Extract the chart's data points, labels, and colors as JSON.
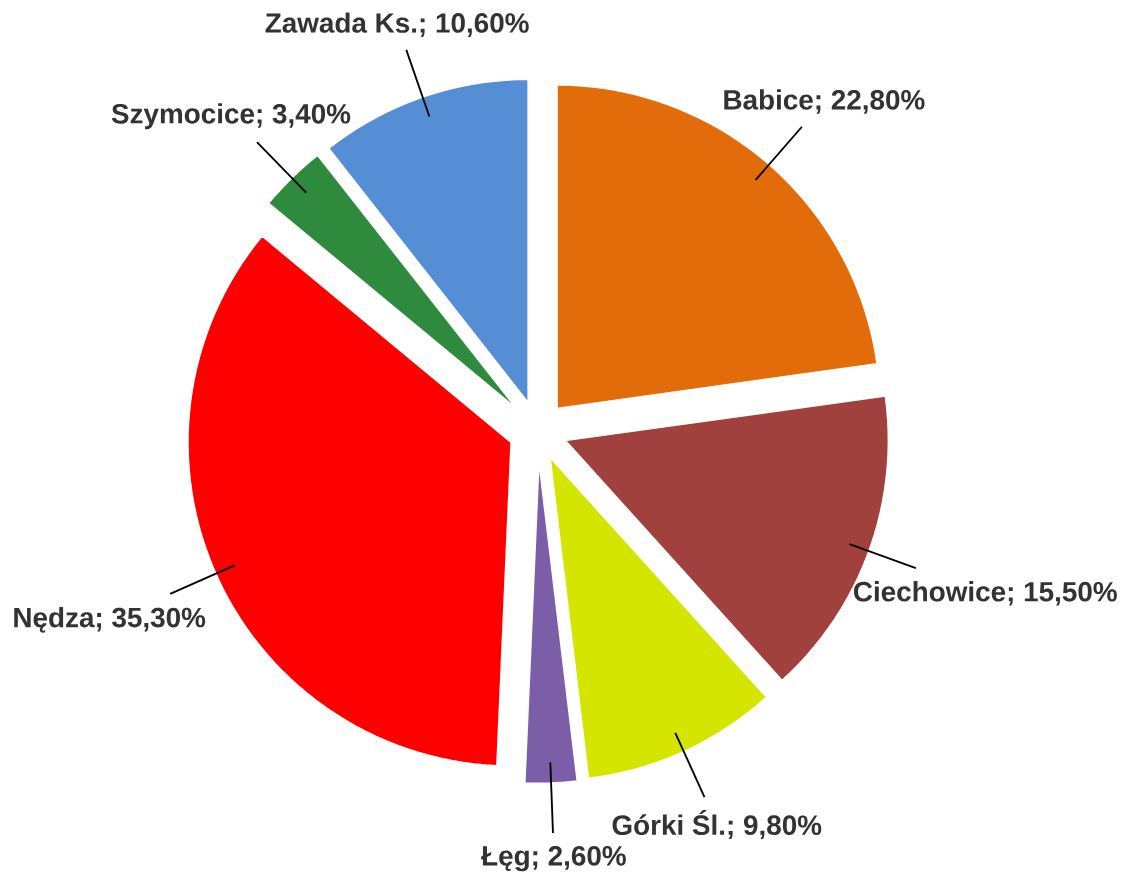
{
  "chart_data": {
    "type": "pie",
    "categories": [
      "Babice; 22,80%",
      "Ciechowice; 15,50%",
      "Górki Śl.; 9,80%",
      "Łęg; 2,60%",
      "Nędza; 35,30%",
      "Szymocice; 3,40%",
      "Zawada Ks.; 10,60%"
    ],
    "values": [
      22.8,
      15.5,
      9.8,
      2.6,
      35.3,
      3.4,
      10.6
    ],
    "colors": [
      "#e36c0a",
      "#a0413e",
      "#d4e600",
      "#7b5ea7",
      "#ff0000",
      "#2e8b3e",
      "#558ed5"
    ]
  }
}
